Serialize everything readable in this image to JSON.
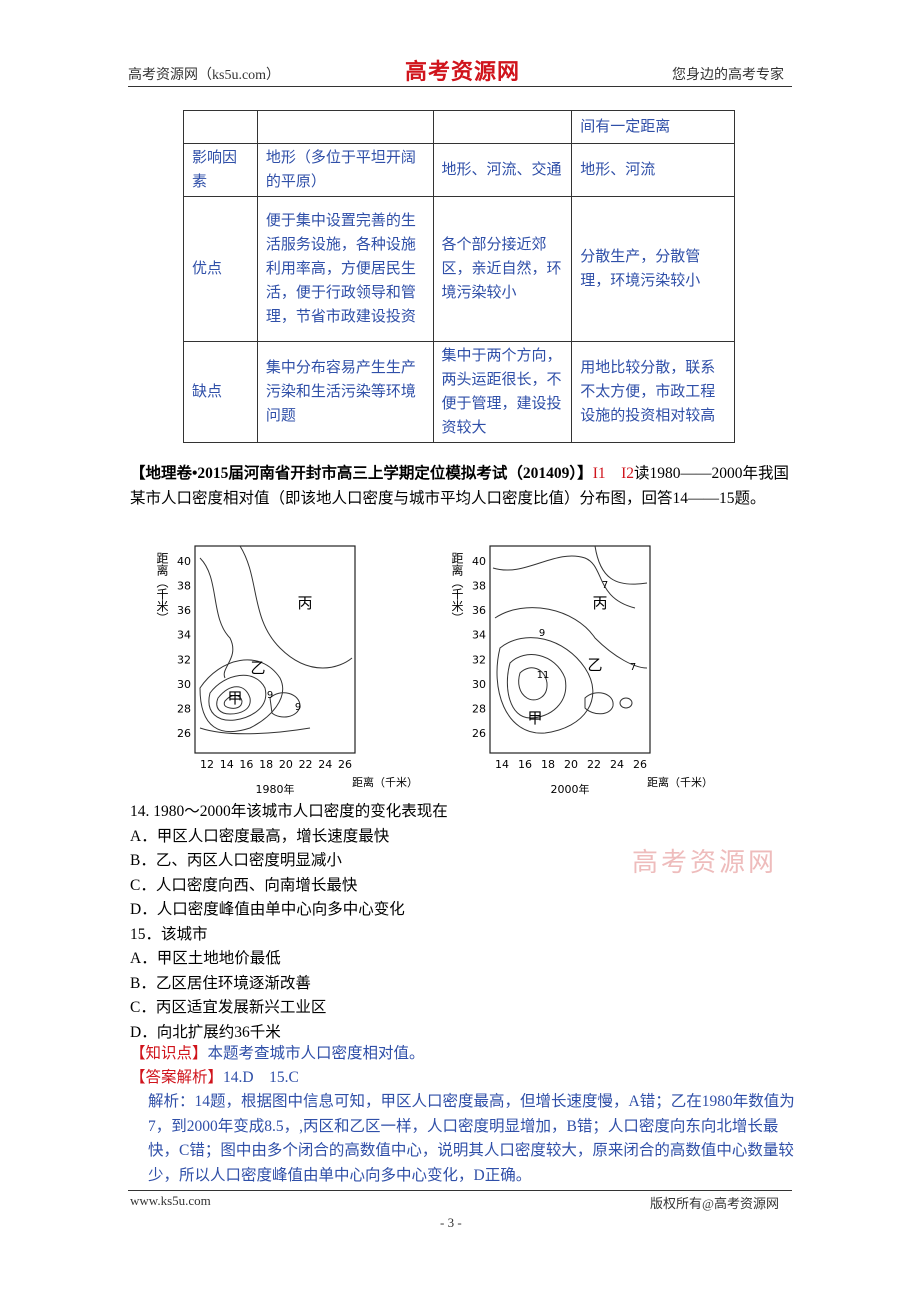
{
  "header": {
    "left": "高考资源网（ks5u.com）",
    "logo": "高考资源网",
    "right": "您身边的高考专家"
  },
  "table": {
    "rows": [
      [
        null,
        null,
        null,
        "间有一定距离"
      ],
      [
        "影响因素",
        "地形（多位于平坦开阔的平原）",
        "地形、河流、交通",
        "地形、河流"
      ],
      [
        "优点",
        "便于集中设置完善的生活服务设施，各种设施利用率高，方便居民生活，便于行政领导和管理，节省市政建设投资",
        "各个部分接近郊区，亲近自然，环境污染较小",
        "分散生产，分散管理，环境污染较小"
      ],
      [
        "缺点",
        "集中分布容易产生生产污染和生活污染等环境问题",
        "集中于两个方向，两头运距很长，不便于管理，建设投资较大",
        "用地比较分散，联系不太方便，市政工程设施的投资相对较高"
      ]
    ]
  },
  "intro": {
    "source": "【地理卷•2015届河南省开封市高三上学期定位模拟考试（201409）】",
    "codes": "I1　I2",
    "text": "读1980——2000年我国某市人口密度相对值（即该地人口密度与城市平均人口密度比值）分布图，回答14——15题。"
  },
  "figures": [
    {
      "y_label": "距离（千米）",
      "yticks": [
        26,
        28,
        30,
        32,
        34,
        36,
        38,
        40
      ],
      "xticks": [
        12,
        14,
        16,
        18,
        20,
        22,
        24,
        26
      ],
      "x_label": "距离（千米）",
      "caption": "1980年",
      "labels": [
        "丙",
        "乙",
        "甲",
        "9",
        "9"
      ]
    },
    {
      "y_label": "距离（千米）",
      "yticks": [
        26,
        28,
        30,
        32,
        34,
        36,
        38,
        40
      ],
      "xticks": [
        14,
        16,
        18,
        20,
        22,
        24,
        26
      ],
      "x_label": "距离（千米）",
      "caption": "2000年",
      "labels": [
        "7",
        "丙",
        "9",
        "乙",
        "7",
        "11",
        "甲"
      ]
    }
  ],
  "questions": [
    {
      "stem": "14. 1980～2000年该城市人口密度的变化表现在",
      "options": [
        "A．甲区人口密度最高，增长速度最快",
        "B．乙、丙区人口密度明显减小",
        "C．人口密度向西、向南增长最快",
        "D．人口密度峰值由单中心向多中心变化"
      ]
    },
    {
      "stem": "15．该城市",
      "options": [
        "A．甲区土地地价最低",
        "B．乙区居住环境逐渐改善",
        "C．丙区适宜发展新兴工业区",
        "D．向北扩展约36千米"
      ]
    }
  ],
  "watermark": "高考资源网",
  "knowledge": {
    "tag": "【知识点】",
    "text": "本题考查城市人口密度相对值。"
  },
  "answer": {
    "tag": "【答案解析】",
    "text": "14.D　15.C"
  },
  "analysis": "解析：14题，根据图中信息可知，甲区人口密度最高，但增长速度慢，A错；乙在1980年数值为7，到2000年变成8.5，,丙区和乙区一样，人口密度明显增加，B错；人口密度向东向北增长最快，C错；图中由多个闭合的高数值中心，说明其人口密度较大，原来闭合的高数值中心数量较少，所以人口密度峰值由单中心向多中心变化，D正确。",
  "footer": {
    "left": "www.ks5u.com",
    "page": "- 3 -",
    "right": "版权所有@高考资源网"
  }
}
